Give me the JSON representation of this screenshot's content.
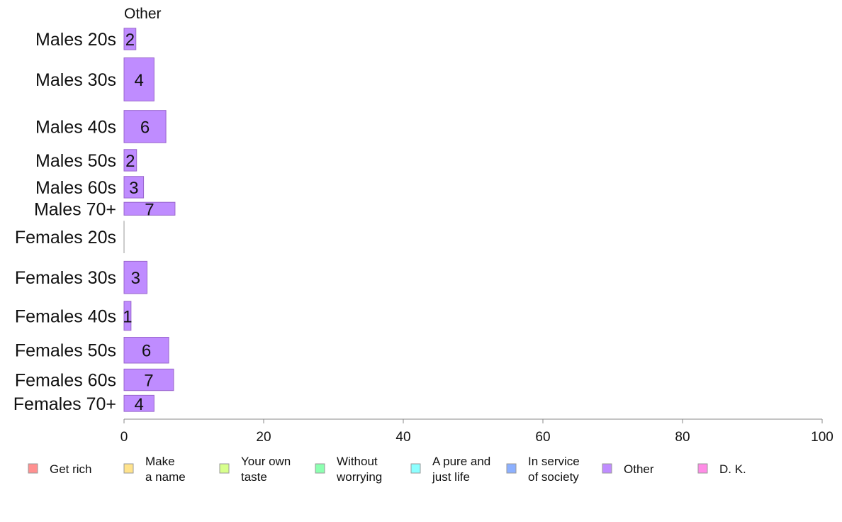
{
  "chart_data": {
    "type": "bar",
    "orientation": "horizontal",
    "panel_title": "Other",
    "categories": [
      "Males 20s",
      "Males 30s",
      "Males 40s",
      "Males 50s",
      "Males 60s",
      "Males 70+",
      "Females 20s",
      "Females 30s",
      "Females 40s",
      "Females 50s",
      "Females 60s",
      "Females 70+"
    ],
    "values": [
      2,
      4,
      6,
      2,
      3,
      7,
      0,
      3,
      1,
      6,
      7,
      4
    ],
    "bar_values": [
      1.7,
      4.3,
      6.0,
      1.8,
      2.8,
      7.3,
      0,
      3.3,
      1.0,
      6.4,
      7.1,
      4.3
    ],
    "bar_heights": [
      2,
      4,
      3,
      2,
      2,
      1.2,
      3,
      3,
      2.7,
      2.4,
      2,
      1.5
    ],
    "xlim": [
      0,
      100
    ],
    "xticks": [
      0,
      20,
      40,
      60,
      80,
      100
    ],
    "bar_color": "#bf8cff",
    "bar_stroke": "#9966cc",
    "legend": [
      {
        "lines": [
          "Get rich"
        ],
        "color": "#ff9090"
      },
      {
        "lines": [
          "Make",
          "a name"
        ],
        "color": "#ffe38c"
      },
      {
        "lines": [
          "Your own",
          "taste"
        ],
        "color": "#d7ff8c"
      },
      {
        "lines": [
          "Without",
          "worrying"
        ],
        "color": "#8cffb0"
      },
      {
        "lines": [
          "A pure and",
          "just life"
        ],
        "color": "#8cffff"
      },
      {
        "lines": [
          "In service",
          "of society"
        ],
        "color": "#8cb0ff"
      },
      {
        "lines": [
          "Other"
        ],
        "color": "#bf8cff"
      },
      {
        "lines": [
          "D. K."
        ],
        "color": "#ff8ce6"
      }
    ],
    "legend_placement": "bottom",
    "grid": false
  }
}
